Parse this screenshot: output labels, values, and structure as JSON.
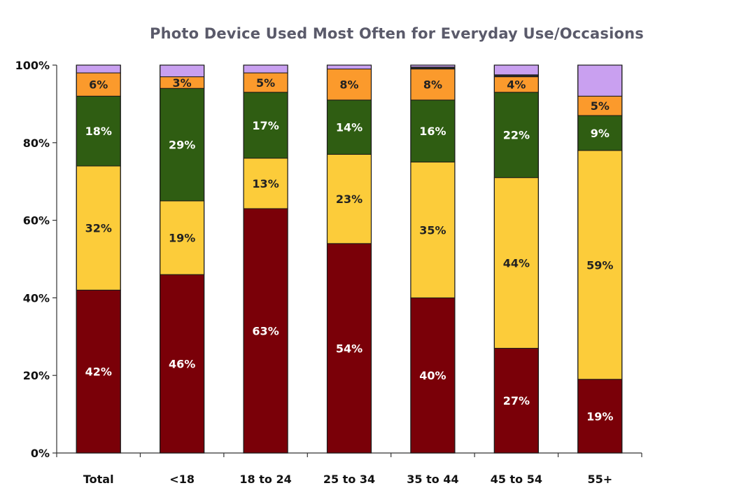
{
  "chart_data": {
    "type": "bar",
    "stacked": true,
    "title": "Photo Device Used Most Often for Everyday Use/Occasions",
    "xlabel": "",
    "ylabel": "",
    "ylim": [
      0,
      100
    ],
    "y_ticks": [
      "0%",
      "20%",
      "40%",
      "60%",
      "80%",
      "100%"
    ],
    "grid": false,
    "legend": "none",
    "categories": [
      "Total",
      "<18",
      "18 to 24",
      "25 to 34",
      "35 to 44",
      "45 to 54",
      "55+"
    ],
    "series": [
      {
        "color": "#7a0008",
        "label_color": "#ffffff",
        "values": [
          42,
          46,
          63,
          54,
          40,
          27,
          19
        ],
        "labels": [
          "42%",
          "46%",
          "63%",
          "54%",
          "40%",
          "27%",
          "19%"
        ]
      },
      {
        "color": "#fccc3a",
        "label_color": "#222222",
        "values": [
          32,
          19,
          13,
          23,
          35,
          44,
          59
        ],
        "labels": [
          "32%",
          "19%",
          "13%",
          "23%",
          "35%",
          "44%",
          "59%"
        ]
      },
      {
        "color": "#2f5d12",
        "label_color": "#ffffff",
        "values": [
          18,
          29,
          17,
          14,
          16,
          22,
          9
        ],
        "labels": [
          "18%",
          "29%",
          "17%",
          "14%",
          "16%",
          "22%",
          "9%"
        ]
      },
      {
        "color": "#fb9a2c",
        "label_color": "#222222",
        "values": [
          6,
          3,
          5,
          8,
          8,
          4,
          5
        ],
        "labels": [
          "6%",
          "3%",
          "5%",
          "8%",
          "8%",
          "4%",
          "5%"
        ]
      },
      {
        "color": "#2a2a2a",
        "label_color": "#ffffff",
        "values": [
          0,
          0,
          0,
          0,
          0.5,
          0.5,
          0
        ],
        "labels": [
          "",
          "",
          "",
          "",
          "",
          "",
          ""
        ]
      },
      {
        "color": "#c9a0f0",
        "label_color": "#222222",
        "values": [
          2,
          3,
          2,
          1,
          0.5,
          2.5,
          8
        ],
        "labels": [
          "",
          "",
          "",
          "",
          "",
          "",
          ""
        ]
      }
    ]
  }
}
